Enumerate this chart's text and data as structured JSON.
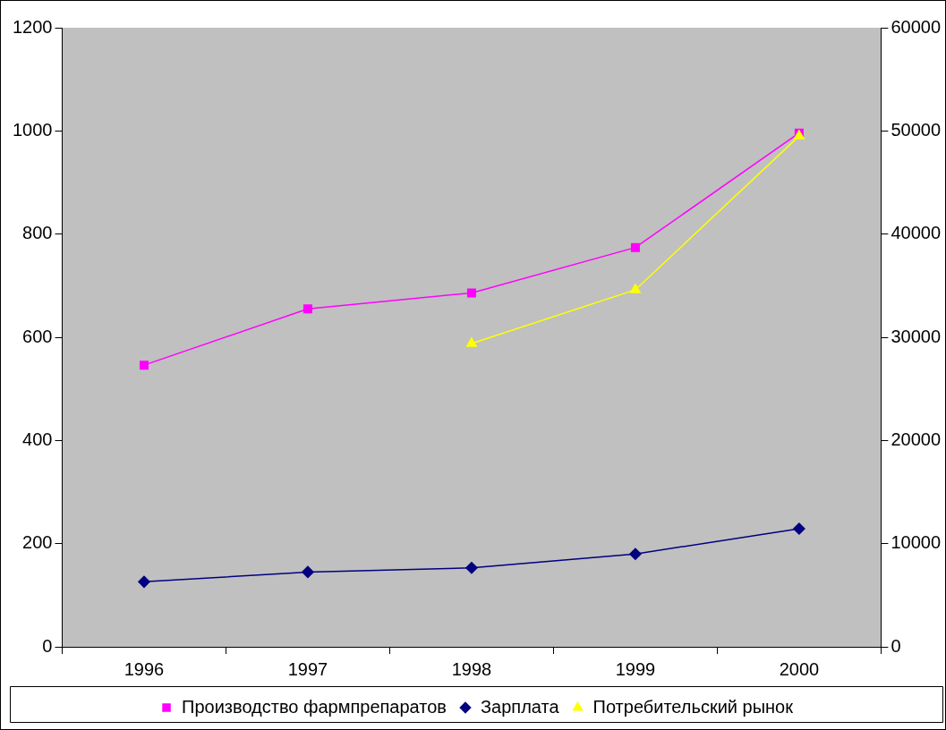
{
  "chart_data": {
    "type": "line",
    "categories": [
      "1996",
      "1997",
      "1998",
      "1999",
      "2000"
    ],
    "series": [
      {
        "name": "Производство фармпрепаратов",
        "color": "#ff00ff",
        "marker": "square",
        "values": [
          546,
          655,
          686,
          774,
          996
        ]
      },
      {
        "name": "Зарплата",
        "color": "#000080",
        "marker": "diamond",
        "values": [
          126,
          145,
          153,
          180,
          229
        ]
      },
      {
        "name": "Потребительский рынок",
        "color": "#ffff00",
        "marker": "triangle",
        "axis": "y2",
        "values": [
          null,
          null,
          29400,
          34600,
          49500
        ]
      }
    ],
    "ylim": [
      0,
      1200
    ],
    "yticks": [
      0,
      200,
      400,
      600,
      800,
      1000,
      1200
    ],
    "y2lim": [
      0,
      60000
    ],
    "y2ticks": [
      0,
      10000,
      20000,
      30000,
      40000,
      50000,
      60000
    ],
    "grid": false,
    "legend": "bottom"
  }
}
